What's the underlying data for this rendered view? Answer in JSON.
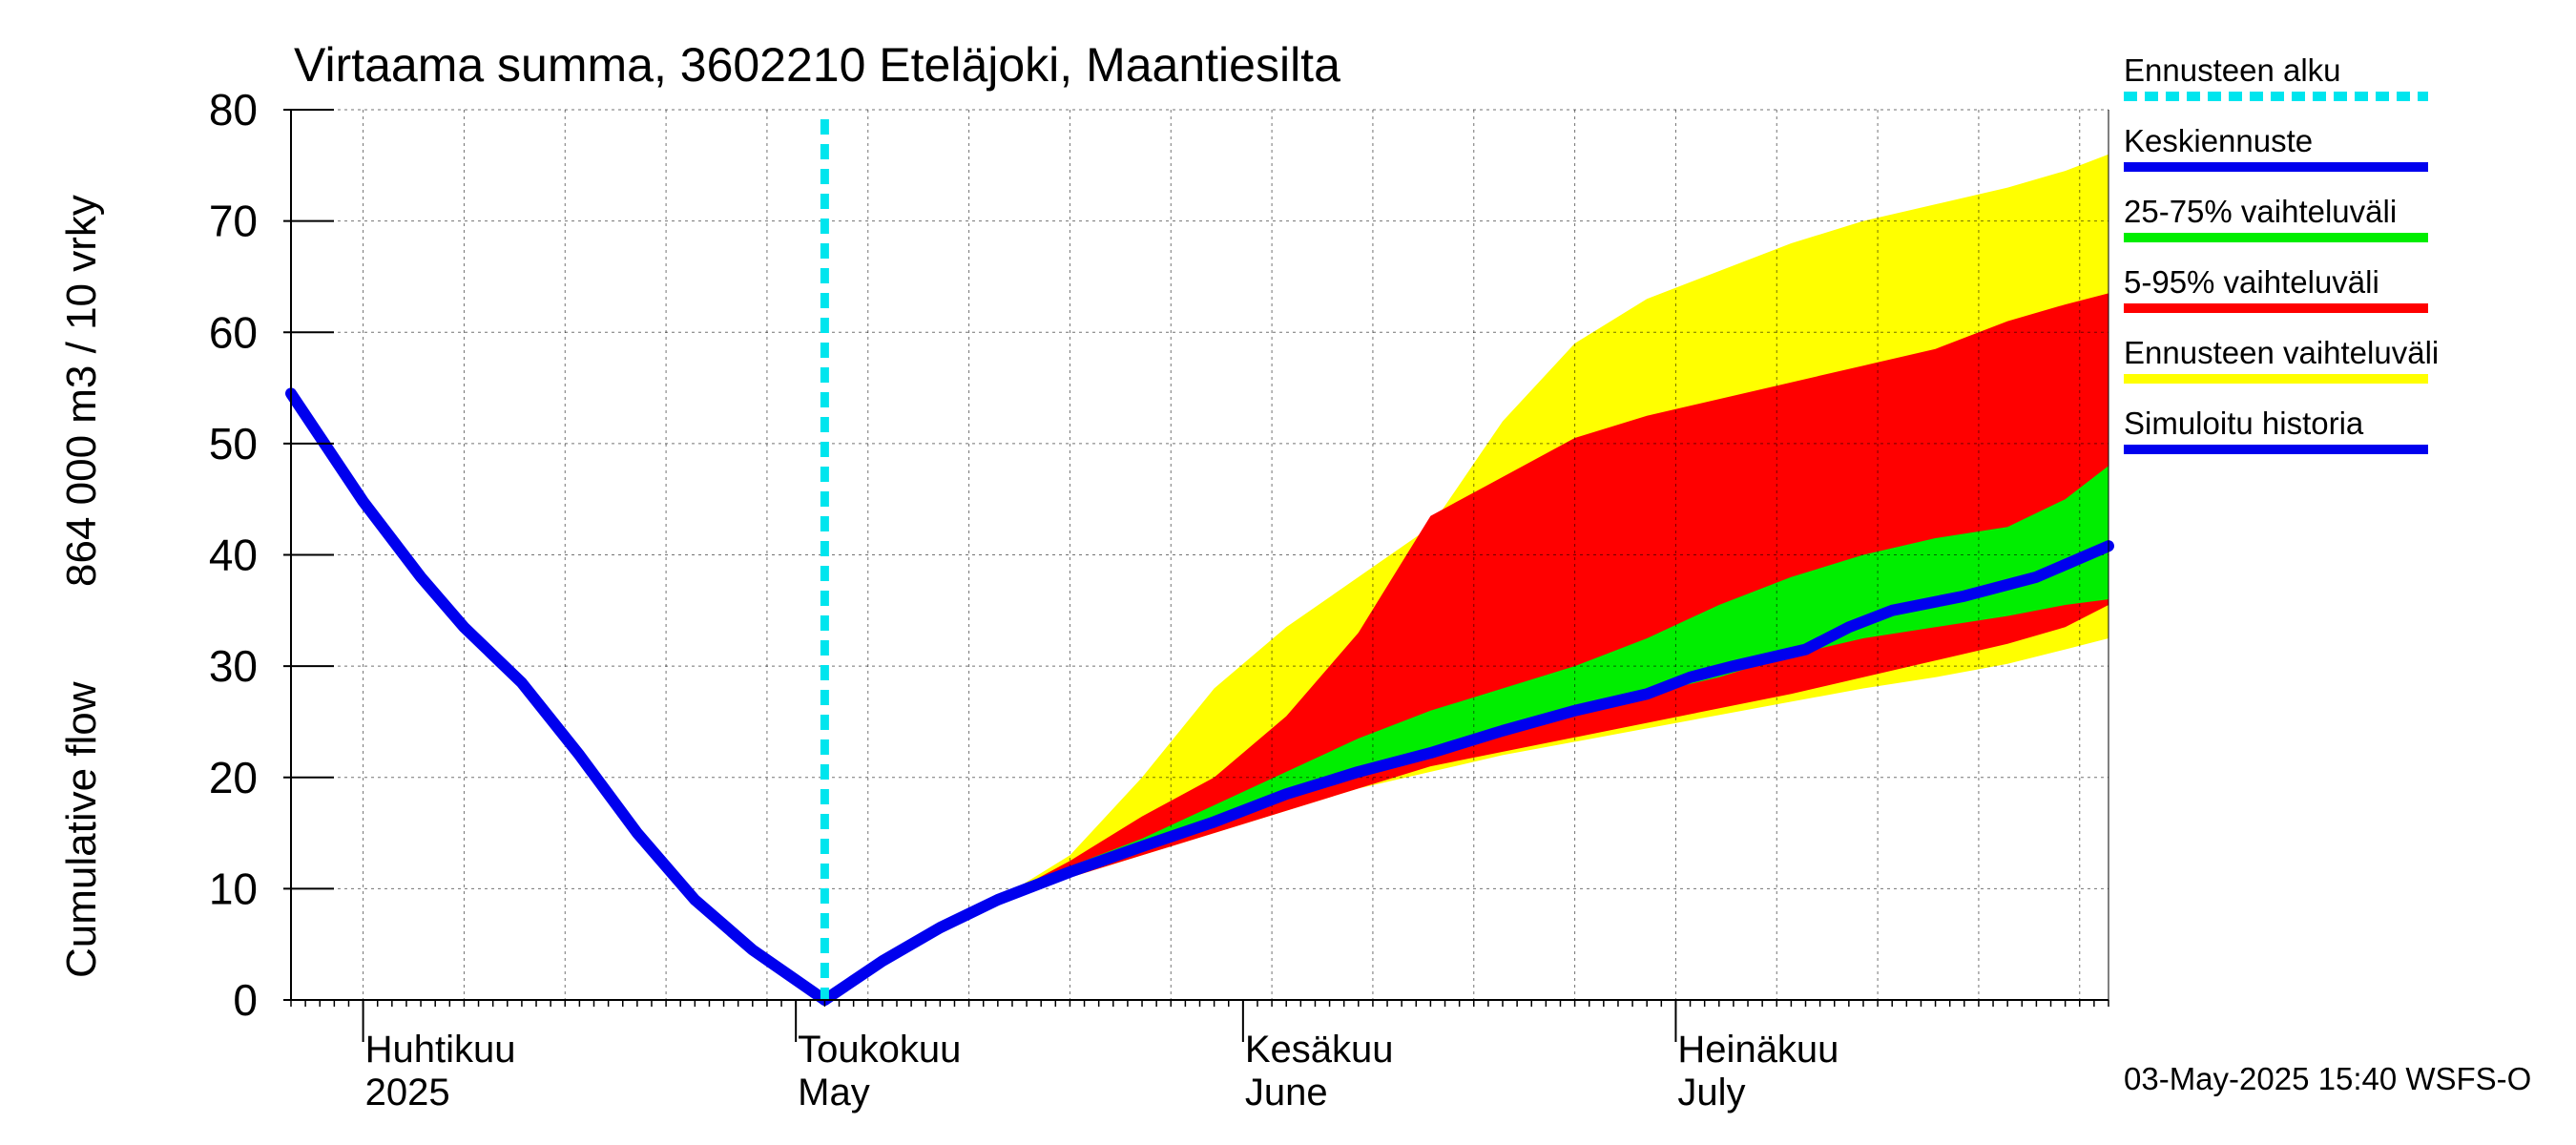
{
  "chart_data": {
    "type": "area",
    "title": "Virtaama summa, 3602210 Eteläjoki, Maantiesilta",
    "ylabel_left": "Cumulative flow",
    "ylabel_right": "864 000 m3 / 10 vrky",
    "ylim": [
      0,
      80
    ],
    "yticks": [
      0,
      10,
      20,
      30,
      40,
      50,
      60,
      70,
      80
    ],
    "xlim": [
      "2025-03-27",
      "2025-07-31"
    ],
    "grid": true,
    "legend_position": "right",
    "month_labels": [
      {
        "date": "2025-04-01",
        "fi": "Huhtikuu",
        "en": "2025"
      },
      {
        "date": "2025-05-01",
        "fi": "Toukokuu",
        "en": "May"
      },
      {
        "date": "2025-06-01",
        "fi": "Kesäkuu",
        "en": "June"
      },
      {
        "date": "2025-07-01",
        "fi": "Heinäkuu",
        "en": "July"
      }
    ],
    "forecast_start": "2025-05-03",
    "timestamp": "03-May-2025 15:40 WSFS-O",
    "legend": [
      {
        "label": "Ennusteen alku",
        "color": "#00e5ee",
        "style": "dashed"
      },
      {
        "label": "Keskiennuste",
        "color": "#0000ee",
        "style": "solid"
      },
      {
        "label": "25-75% vaihteluväli",
        "color": "#00ee00",
        "style": "solid"
      },
      {
        "label": "5-95% vaihteluväli",
        "color": "#ff0000",
        "style": "solid"
      },
      {
        "label": "Ennusteen vaihteluväli",
        "color": "#ffff00",
        "style": "solid"
      },
      {
        "label": "Simuloitu historia",
        "color": "#0000ee",
        "style": "solid"
      }
    ],
    "history": {
      "name": "Simuloitu historia",
      "x": [
        "2025-03-27",
        "2025-04-01",
        "2025-04-05",
        "2025-04-08",
        "2025-04-12",
        "2025-04-16",
        "2025-04-20",
        "2025-04-24",
        "2025-04-28",
        "2025-05-03"
      ],
      "y": [
        54.5,
        44.8,
        38.0,
        33.5,
        28.5,
        22.0,
        15.0,
        9.0,
        4.5,
        0.0
      ]
    },
    "median": {
      "name": "Keskiennuste",
      "x": [
        "2025-05-03",
        "2025-05-07",
        "2025-05-11",
        "2025-05-15",
        "2025-05-20",
        "2025-05-25",
        "2025-05-30",
        "2025-06-04",
        "2025-06-09",
        "2025-06-14",
        "2025-06-19",
        "2025-06-24",
        "2025-06-29",
        "2025-07-02",
        "2025-07-05",
        "2025-07-10",
        "2025-07-13",
        "2025-07-16",
        "2025-07-21",
        "2025-07-26",
        "2025-07-31"
      ],
      "y": [
        0.0,
        3.5,
        6.5,
        9.0,
        11.5,
        13.8,
        16.0,
        18.5,
        20.5,
        22.2,
        24.2,
        26.0,
        27.5,
        29.0,
        30.0,
        31.5,
        33.5,
        35.0,
        36.3,
        38.0,
        40.8
      ]
    },
    "bands": {
      "x": [
        "2025-05-03",
        "2025-05-07",
        "2025-05-11",
        "2025-05-15",
        "2025-05-20",
        "2025-05-25",
        "2025-05-30",
        "2025-06-04",
        "2025-06-09",
        "2025-06-14",
        "2025-06-19",
        "2025-06-24",
        "2025-06-29",
        "2025-07-04",
        "2025-07-09",
        "2025-07-14",
        "2025-07-19",
        "2025-07-24",
        "2025-07-28",
        "2025-07-31"
      ],
      "p0": [
        0.0,
        3.5,
        6.5,
        9.0,
        11.0,
        13.0,
        15.0,
        17.0,
        19.0,
        20.5,
        22.0,
        23.2,
        24.4,
        25.6,
        26.8,
        28.0,
        29.0,
        30.2,
        31.5,
        32.5
      ],
      "p5": [
        0.0,
        3.5,
        6.5,
        9.0,
        11.0,
        13.0,
        15.0,
        17.0,
        19.0,
        21.0,
        22.3,
        23.6,
        24.9,
        26.2,
        27.5,
        29.0,
        30.5,
        32.0,
        33.5,
        35.5
      ],
      "p25": [
        0.0,
        3.5,
        6.5,
        9.0,
        11.0,
        13.5,
        15.5,
        18.0,
        20.0,
        22.0,
        24.0,
        26.0,
        27.5,
        29.0,
        31.0,
        32.5,
        33.5,
        34.5,
        35.5,
        36.0
      ],
      "p75": [
        0.0,
        3.5,
        6.5,
        9.0,
        12.0,
        14.5,
        17.5,
        20.5,
        23.5,
        26.0,
        28.0,
        30.0,
        32.5,
        35.5,
        38.0,
        40.0,
        41.5,
        42.5,
        45.0,
        48.0
      ],
      "p95": [
        0.0,
        3.5,
        6.5,
        9.0,
        12.5,
        16.5,
        20.0,
        25.5,
        33.0,
        43.5,
        47.0,
        50.5,
        52.5,
        54.0,
        55.5,
        57.0,
        58.5,
        61.0,
        62.5,
        63.5
      ],
      "p100": [
        0.0,
        3.5,
        6.5,
        9.0,
        13.0,
        20.0,
        28.0,
        33.5,
        38.0,
        42.5,
        52.0,
        59.0,
        63.0,
        65.5,
        68.0,
        70.0,
        71.5,
        73.0,
        74.5,
        76.0
      ]
    }
  }
}
